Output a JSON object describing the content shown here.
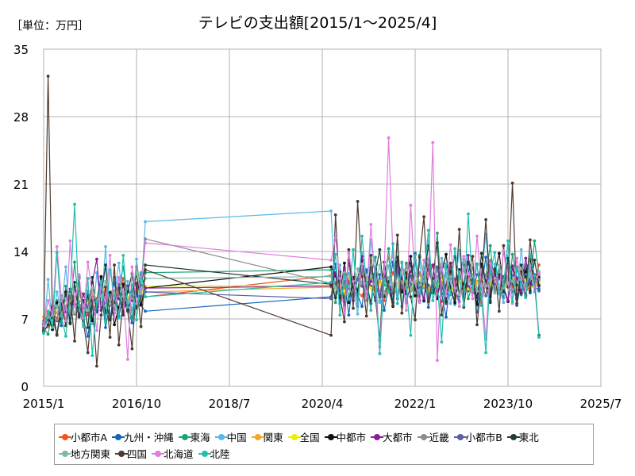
{
  "unit_label": "［単位：万円］",
  "chart_data": {
    "type": "line",
    "title": "テレビの支出額[2015/1～2025/4]",
    "xlabel": "",
    "ylabel": "",
    "ylim": [
      0,
      35
    ],
    "y_ticks": [
      "0",
      "7",
      "14",
      "21",
      "28",
      "35"
    ],
    "x_ticks": [
      {
        "date": "2015-01",
        "label": "2015/1"
      },
      {
        "date": "2016-10",
        "label": "2016/10"
      },
      {
        "date": "2018-07",
        "label": "2018/7"
      },
      {
        "date": "2020-04",
        "label": "2020/4"
      },
      {
        "date": "2022-01",
        "label": "2022/1"
      },
      {
        "date": "2023-10",
        "label": "2023/10"
      },
      {
        "date": "2025-07",
        "label": "2025/7"
      }
    ],
    "xlim": [
      "2015-01",
      "2025-07"
    ],
    "grid": true,
    "legend_position": "bottom",
    "periods": [
      {
        "start": "2015-01",
        "end": "2016-12"
      },
      {
        "start": "2020-06",
        "end": "2025-04"
      }
    ],
    "series": [
      {
        "name": "小都市A",
        "color": "#f4511e",
        "values": [
          5.8,
          6.2,
          6.5,
          7.1,
          8.4,
          6.9,
          7.8,
          9.2,
          10.5,
          8.1,
          7.4,
          6.8,
          9.1,
          10.2,
          8.5,
          7.3,
          8.9,
          9.6,
          11.2,
          8.7,
          7.9,
          8.3,
          9.4,
          9.3,
          11.5,
          10.8,
          9.6,
          10.1,
          10.9,
          11.3,
          9.8,
          9.4,
          10.6,
          11.1,
          10.2,
          9.7,
          8.9,
          10.4,
          11.8,
          10.5,
          9.9,
          10.7,
          11.4,
          10.2,
          9.5,
          10.3,
          12.1,
          10.8,
          9.7,
          8.8,
          10.5,
          11.6,
          10.9,
          9.8,
          10.2,
          11.3,
          10.6,
          9.9,
          8.7,
          10.8,
          11.7,
          10.4,
          9.6,
          10.9,
          11.2,
          10.3,
          12.4,
          11.1,
          9.7,
          10.5,
          10.8,
          12.6
        ]
      },
      {
        "name": "九州・沖縄",
        "color": "#1565c0",
        "values": [
          6.4,
          7.2,
          5.9,
          8.8,
          6.3,
          9.7,
          7.1,
          8.5,
          11.4,
          6.9,
          5.2,
          8.3,
          7.7,
          9.9,
          6.1,
          8.6,
          10.8,
          7.3,
          9.1,
          8.2,
          6.6,
          9.5,
          8.4,
          7.8,
          9.3,
          12.7,
          8.6,
          10.9,
          7.4,
          11.2,
          9.5,
          8.3,
          12.1,
          10.4,
          8.9,
          11.6,
          7.9,
          10.2,
          12.9,
          9.1,
          11.3,
          8.7,
          10.6,
          13.8,
          9.4,
          11.9,
          8.2,
          10.7,
          12.3,
          9.6,
          7.2,
          11.4,
          10.1,
          8.8,
          12.6,
          9.9,
          11.1,
          7.7,
          10.4,
          13.4,
          8.9,
          11.8,
          10.3,
          9.2,
          12.7,
          11.5,
          8.4,
          10.9,
          12.2,
          9.7,
          11.4,
          10.1
        ]
      },
      {
        "name": "東海",
        "color": "#1aa37a",
        "values": [
          6.1,
          5.4,
          7.8,
          8.9,
          6.7,
          10.4,
          7.5,
          12.9,
          8.1,
          6.4,
          9.6,
          7.2,
          8.7,
          11.3,
          6.9,
          9.8,
          7.6,
          10.2,
          12.4,
          8.5,
          7.1,
          10.6,
          9.3,
          11.8,
          12.1,
          8.7,
          11.4,
          9.2,
          13.1,
          10.7,
          8.6,
          12.3,
          9.8,
          11.6,
          13.4,
          8.9,
          10.5,
          14.3,
          9.4,
          11.7,
          8.3,
          12.8,
          10.1,
          9.6,
          13.6,
          11.2,
          8.8,
          10.9,
          15.9,
          9.7,
          12.4,
          10.3,
          8.5,
          11.9,
          13.2,
          9.1,
          10.6,
          12.7,
          8.4,
          11.5,
          14.6,
          9.9,
          12.1,
          10.4,
          8.9,
          13.7,
          11.3,
          9.5,
          12.6,
          10.8,
          15.1,
          11.6
        ]
      },
      {
        "name": "中国",
        "color": "#5bb8e8",
        "values": [
          5.6,
          11.1,
          6.3,
          9.8,
          7.9,
          12.4,
          6.8,
          8.9,
          10.7,
          7.4,
          9.3,
          6.5,
          11.8,
          8.2,
          14.5,
          7.1,
          9.6,
          12.8,
          8.4,
          10.9,
          7.7,
          13.2,
          9.5,
          17.1,
          18.2,
          9.4,
          12.6,
          8.1,
          11.7,
          10.3,
          7.5,
          13.9,
          9.6,
          15.2,
          11.4,
          8.7,
          10.8,
          12.5,
          9.1,
          14.7,
          8.3,
          11.6,
          10.2,
          9.7,
          12.9,
          8.8,
          15.1,
          10.5,
          9.3,
          13.3,
          11.7,
          8.6,
          10.4,
          14.1,
          9.2,
          12.2,
          10.8,
          8.1,
          11.5,
          15.8,
          9.6,
          12.7,
          10.3,
          8.7,
          13.6,
          11.1,
          9.4,
          14.2,
          10.6,
          12.4,
          9.8,
          11.7
        ]
      },
      {
        "name": "関東",
        "color": "#f5a623",
        "values": [
          7.2,
          7.8,
          8.4,
          7.6,
          9.1,
          8.3,
          9.7,
          8.6,
          10.2,
          9.4,
          8.9,
          9.8,
          8.5,
          9.3,
          10.1,
          8.8,
          9.6,
          10.4,
          9.2,
          8.7,
          9.9,
          10.6,
          9.1,
          9.8,
          10.3,
          10.1,
          10.8,
          9.6,
          11.2,
          10.4,
          9.9,
          10.7,
          11.3,
          10.2,
          9.8,
          10.9,
          11.5,
          10.1,
          9.7,
          10.6,
          11.1,
          10.3,
          9.9,
          10.8,
          11.6,
          10.4,
          10.1,
          9.8,
          10.7,
          11.3,
          10.5,
          9.9,
          10.2,
          11.4,
          10.6,
          10.1,
          9.8,
          10.9,
          11.2,
          10.3,
          10.7,
          11.5,
          10.2,
          9.9,
          10.8,
          11.1,
          10.4,
          10.7,
          11.3,
          10.1,
          10.6,
          10.9
        ]
      },
      {
        "name": "全国",
        "color": "#eeee00",
        "values": [
          6.9,
          7.3,
          7.8,
          8.1,
          8.5,
          8.2,
          8.9,
          9.1,
          9.4,
          8.8,
          8.6,
          9.2,
          8.9,
          9.3,
          9.6,
          9.1,
          9.5,
          9.8,
          9.4,
          9.2,
          9.7,
          10.1,
          9.6,
          10.4,
          10.5,
          10.1,
          10.4,
          9.9,
          10.6,
          10.3,
          10.1,
          10.5,
          10.8,
          10.2,
          10.0,
          10.6,
          10.9,
          10.3,
          10.1,
          10.5,
          10.8,
          10.4,
          10.1,
          10.6,
          11.0,
          10.5,
          10.2,
          10.1,
          10.6,
          10.9,
          10.4,
          10.1,
          10.3,
          10.8,
          10.5,
          10.2,
          10.0,
          10.7,
          10.9,
          10.4,
          10.6,
          11.0,
          10.3,
          10.1,
          10.6,
          10.9,
          10.4,
          10.6,
          11.0,
          10.2,
          10.5,
          10.7
        ]
      },
      {
        "name": "中都市",
        "color": "#111111",
        "values": [
          6.5,
          7.4,
          5.9,
          8.7,
          7.1,
          9.8,
          6.6,
          10.3,
          8.4,
          7.2,
          9.5,
          6.8,
          8.9,
          11.4,
          7.6,
          9.7,
          6.4,
          8.2,
          10.6,
          7.9,
          9.3,
          11.8,
          8.5,
          10.2,
          12.4,
          11.5,
          9.2,
          12.8,
          8.7,
          11.3,
          9.9,
          13.1,
          10.4,
          8.6,
          12.2,
          9.5,
          11.7,
          10.1,
          8.3,
          12.9,
          9.8,
          11.2,
          13.5,
          9.4,
          10.7,
          8.9,
          12.6,
          10.3,
          9.1,
          11.8,
          13.7,
          10.2,
          8.7,
          12.1,
          9.6,
          11.4,
          10.8,
          8.5,
          12.7,
          10.9,
          9.3,
          11.6,
          13.8,
          10.1,
          8.8,
          12.4,
          10.5,
          9.7,
          11.9,
          13.2,
          10.6,
          11.3
        ]
      },
      {
        "name": "大都市",
        "color": "#8e1a9e",
        "values": [
          6.2,
          7.1,
          8.3,
          6.8,
          9.2,
          7.7,
          10.1,
          8.5,
          7.4,
          9.6,
          8.1,
          10.8,
          13.2,
          7.9,
          9.4,
          8.6,
          11.3,
          9.1,
          7.8,
          10.4,
          8.9,
          9.7,
          11.6,
          10.2,
          10.4,
          11.8,
          9.5,
          12.3,
          10.6,
          8.9,
          11.2,
          13.5,
          9.8,
          10.9,
          12.1,
          9.3,
          11.5,
          10.2,
          8.7,
          12.8,
          10.4,
          9.6,
          11.9,
          13.1,
          10.3,
          9.1,
          11.4,
          12.6,
          9.9,
          10.8,
          8.6,
          12.2,
          11.1,
          9.5,
          10.7,
          13.6,
          10.2,
          9.4,
          11.8,
          10.6,
          12.9,
          9.7,
          11.3,
          10.1,
          8.9,
          12.5,
          11.2,
          9.8,
          13.3,
          10.7,
          11.6,
          10.4
        ]
      },
      {
        "name": "近畿",
        "color": "#8c8c8c",
        "values": [
          6.8,
          7.5,
          8.1,
          6.9,
          9.4,
          8.2,
          7.6,
          10.3,
          8.8,
          7.3,
          9.9,
          8.5,
          7.9,
          10.6,
          9.2,
          8.4,
          11.1,
          9.7,
          8.3,
          10.2,
          9.1,
          12.4,
          10.5,
          15.3,
          10.7,
          9.3,
          11.6,
          10.2,
          12.8,
          9.6,
          11.3,
          10.7,
          8.9,
          12.1,
          10.4,
          9.8,
          11.7,
          13.4,
          10.1,
          9.5,
          11.2,
          12.6,
          10.3,
          9.7,
          11.8,
          10.6,
          13.2,
          9.9,
          11.4,
          10.8,
          9.3,
          12.7,
          10.5,
          11.9,
          9.6,
          10.8,
          12.3,
          10.1,
          9.4,
          11.6,
          13.1,
          10.4,
          9.8,
          11.3,
          12.5,
          10.6,
          9.9,
          11.8,
          10.3,
          12.2,
          10.7,
          11.1
        ]
      },
      {
        "name": "小都市B",
        "color": "#5b5ea6",
        "values": [
          6.1,
          6.9,
          7.8,
          8.4,
          7.2,
          9.1,
          8.6,
          7.5,
          9.8,
          8.9,
          7.7,
          9.4,
          8.3,
          10.1,
          8.7,
          9.5,
          7.9,
          10.6,
          9.2,
          8.4,
          9.9,
          10.7,
          9.3,
          9.8,
          9.1,
          10.6,
          9.8,
          11.4,
          10.2,
          9.5,
          11.1,
          10.4,
          9.7,
          12.3,
          10.6,
          9.4,
          11.2,
          10.8,
          9.6,
          12.1,
          10.3,
          9.9,
          11.5,
          10.7,
          9.3,
          11.9,
          10.5,
          9.8,
          12.4,
          10.2,
          9.6,
          11.3,
          10.9,
          9.5,
          12.2,
          10.4,
          9.7,
          11.6,
          10.8,
          9.4,
          12.5,
          10.6,
          9.9,
          11.4,
          10.3,
          9.8,
          12.1,
          10.7,
          9.5,
          11.8,
          10.4,
          9.9
        ]
      },
      {
        "name": "東北",
        "color": "#1e3d3a",
        "values": [
          5.7,
          6.4,
          8.2,
          5.3,
          7.9,
          9.6,
          6.5,
          10.8,
          7.2,
          8.9,
          6.1,
          11.3,
          7.8,
          9.4,
          12.6,
          6.9,
          8.7,
          10.2,
          7.4,
          9.8,
          11.7,
          8.1,
          10.5,
          12.6,
          10.6,
          9.2,
          11.9,
          8.4,
          13.1,
          10.3,
          9.1,
          12.4,
          10.8,
          8.6,
          11.7,
          14.2,
          9.3,
          10.9,
          8.7,
          13.4,
          11.2,
          9.6,
          12.8,
          10.1,
          8.9,
          11.5,
          14.6,
          9.7,
          10.8,
          12.3,
          8.8,
          11.9,
          13.5,
          9.4,
          10.6,
          12.9,
          11.1,
          9.2,
          13.8,
          10.4,
          8.7,
          12.2,
          11.6,
          9.8,
          13.3,
          10.7,
          9.1,
          12.6,
          11.4,
          9.9,
          13.1,
          10.5
        ]
      },
      {
        "name": "地方関東",
        "color": "#7fb8a8",
        "values": [
          6.6,
          7.2,
          6.8,
          8.3,
          7.5,
          9.1,
          8.2,
          7.6,
          9.7,
          8.4,
          7.9,
          10.2,
          8.8,
          9.4,
          10.9,
          8.6,
          9.9,
          11.3,
          9.3,
          8.7,
          10.5,
          11.8,
          9.6,
          11.2,
          11.4,
          10.3,
          9.6,
          11.8,
          10.4,
          9.1,
          12.2,
          10.7,
          9.8,
          11.5,
          10.1,
          12.6,
          9.7,
          11.3,
          10.6,
          9.4,
          12.8,
          10.9,
          9.9,
          11.7,
          10.5,
          12.4,
          9.6,
          11.1,
          10.3,
          12.7,
          9.8,
          11.4,
          10.7,
          9.5,
          12.3,
          10.8,
          11.6,
          9.9,
          12.1,
          10.4,
          11.3,
          9.7,
          12.6,
          10.2,
          11.5,
          10.9,
          9.8,
          12.2,
          10.6,
          11.7,
          10.3,
          11.9
        ]
      },
      {
        "name": "四国",
        "color": "#4e3a2e",
        "values": [
          5.9,
          32.2,
          7.1,
          5.4,
          8.6,
          6.3,
          9.8,
          4.7,
          11.2,
          6.7,
          3.5,
          8.9,
          2.1,
          7.4,
          10.3,
          5.1,
          12.6,
          4.3,
          9.1,
          7.8,
          3.9,
          10.7,
          6.2,
          12.1,
          5.3,
          17.8,
          9.4,
          6.7,
          14.2,
          8.1,
          19.2,
          11.4,
          7.3,
          13.6,
          9.2,
          4.8,
          12.9,
          10.1,
          8.4,
          15.7,
          7.6,
          11.8,
          9.3,
          6.9,
          13.4,
          17.6,
          8.8,
          11.2,
          14.9,
          7.4,
          10.5,
          12.8,
          9.1,
          16.3,
          8.2,
          11.7,
          13.5,
          6.4,
          10.9,
          17.3,
          9.7,
          12.1,
          7.8,
          14.6,
          10.3,
          21.1,
          8.6,
          11.9,
          9.4,
          15.2,
          10.8,
          5.3
        ]
      },
      {
        "name": "北海道",
        "color": "#e07de0",
        "values": [
          6.3,
          8.9,
          7.4,
          14.5,
          9.2,
          6.8,
          15.1,
          8.3,
          11.6,
          7.1,
          12.9,
          9.5,
          5.8,
          10.7,
          8.4,
          13.6,
          7.2,
          11.3,
          9.8,
          2.8,
          12.4,
          8.6,
          10.1,
          14.9,
          13.1,
          15.4,
          11.2,
          7.6,
          13.8,
          10.9,
          8.5,
          12.7,
          9.3,
          16.8,
          10.6,
          4.1,
          11.9,
          25.8,
          13.4,
          9.6,
          12.2,
          7.9,
          18.8,
          10.8,
          8.7,
          13.1,
          11.4,
          25.3,
          2.7,
          12.6,
          9.4,
          14.7,
          10.2,
          8.3,
          13.5,
          11.7,
          9.1,
          15.6,
          10.4,
          4.9,
          12.8,
          11.2,
          9.8,
          14.1,
          10.7,
          8.6,
          13.3,
          11.1,
          9.9,
          12.5,
          10.3,
          11.8
        ]
      },
      {
        "name": "北陸",
        "color": "#22bfb0",
        "values": [
          5.5,
          7.8,
          6.1,
          13.9,
          7.3,
          5.2,
          9.6,
          18.9,
          8.4,
          6.2,
          11.2,
          3.2,
          8.8,
          10.9,
          6.7,
          12.1,
          9.4,
          7.1,
          13.6,
          8.2,
          10.5,
          6.9,
          11.8,
          9.3,
          10.8,
          13.7,
          7.4,
          11.6,
          9.1,
          14.2,
          8.3,
          15.6,
          10.7,
          7.9,
          12.4,
          3.4,
          11.1,
          9.8,
          14.8,
          8.6,
          12.9,
          10.3,
          5.3,
          13.6,
          9.7,
          11.4,
          16.2,
          8.9,
          10.8,
          4.6,
          12.7,
          9.5,
          14.3,
          11.2,
          8.4,
          17.9,
          10.1,
          12.6,
          9.3,
          3.5,
          11.8,
          13.9,
          9.6,
          10.4,
          15.1,
          8.8,
          12.3,
          10.6,
          9.2,
          13.7,
          11.5,
          5.1
        ]
      }
    ]
  }
}
